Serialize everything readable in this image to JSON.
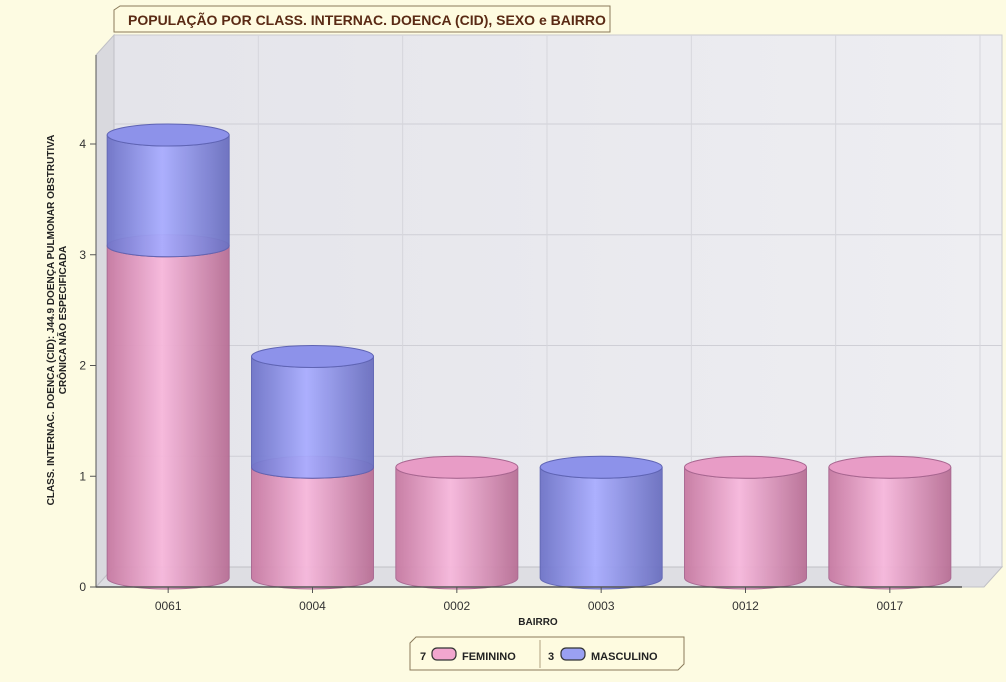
{
  "chart_data": {
    "type": "bar",
    "stacked": true,
    "style": "3d-cylinder",
    "title": "POPULAÇÃO POR CLASS. INTERNAC. DOENCA (CID), SEXO e BAIRRO",
    "xlabel": "BAIRRO",
    "ylabel_lines": [
      "CLASS. INTERNAC. DOENCA (CID): J44.9 DOENÇA PULMONAR OBSTRUTIVA",
      "CRÔNICA NÃO ESPECIFICADA"
    ],
    "categories": [
      "0061",
      "0004",
      "0002",
      "0003",
      "0012",
      "0017"
    ],
    "ylim": [
      0,
      4
    ],
    "yticks": [
      "0",
      "1",
      "2",
      "3",
      "4"
    ],
    "grid": true,
    "legend_position": "bottom-center",
    "series": [
      {
        "name": "FEMININO",
        "total": "7",
        "color": "#f2a6cf",
        "values": [
          3,
          1,
          1,
          0,
          1,
          1
        ]
      },
      {
        "name": "MASCULINO",
        "total": "3",
        "color": "#9aa0f2",
        "values": [
          1,
          1,
          0,
          1,
          0,
          0
        ]
      }
    ]
  }
}
